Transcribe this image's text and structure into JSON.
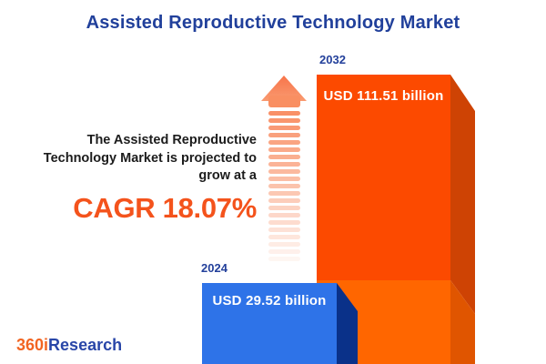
{
  "header": {
    "title": "Assisted Reproductive Technology Market"
  },
  "annotation": {
    "text": "The Assisted Reproductive Technology Market is projected to grow at a",
    "cagr_text": "CAGR 18.07%"
  },
  "bars": [
    {
      "year": "2024",
      "value_label": "USD 29.52 billion"
    },
    {
      "year": "2032",
      "value_label": "USD 111.51 billion"
    }
  ],
  "logo": {
    "part1": "360i",
    "part2": "Research"
  },
  "colors": {
    "title_navy": "#21409B",
    "cagr_orange": "#F4531C",
    "bar_2032_front_top": "#FC4A00",
    "bar_2032_front_bottom": "#FF6600",
    "bar_2032_side_top": "#CE4304",
    "bar_2032_side_bottom": "#E05500",
    "bar_2024_front": "#2E73E8",
    "bar_2024_side": "#0A3189",
    "arrow_orange": "#F8875A",
    "logo_orange": "#F26522",
    "logo_blue": "#2946A8"
  },
  "chart_data": {
    "type": "bar",
    "title": "Assisted Reproductive Technology Market",
    "categories": [
      "2024",
      "2032"
    ],
    "values": [
      29.52,
      111.51
    ],
    "unit": "USD billion",
    "data_labels": [
      "USD 29.52 billion",
      "USD 111.51 billion"
    ],
    "cagr": "18.07%",
    "annotation": "The Assisted Reproductive Technology Market is projected to grow at a CAGR 18.07%",
    "series_colors": {
      "2024": "#2E73E8",
      "2032": "#FC4A00"
    },
    "legend": "none",
    "grid": false,
    "style": "3d-infographic-bars-with-growth-arrow"
  }
}
